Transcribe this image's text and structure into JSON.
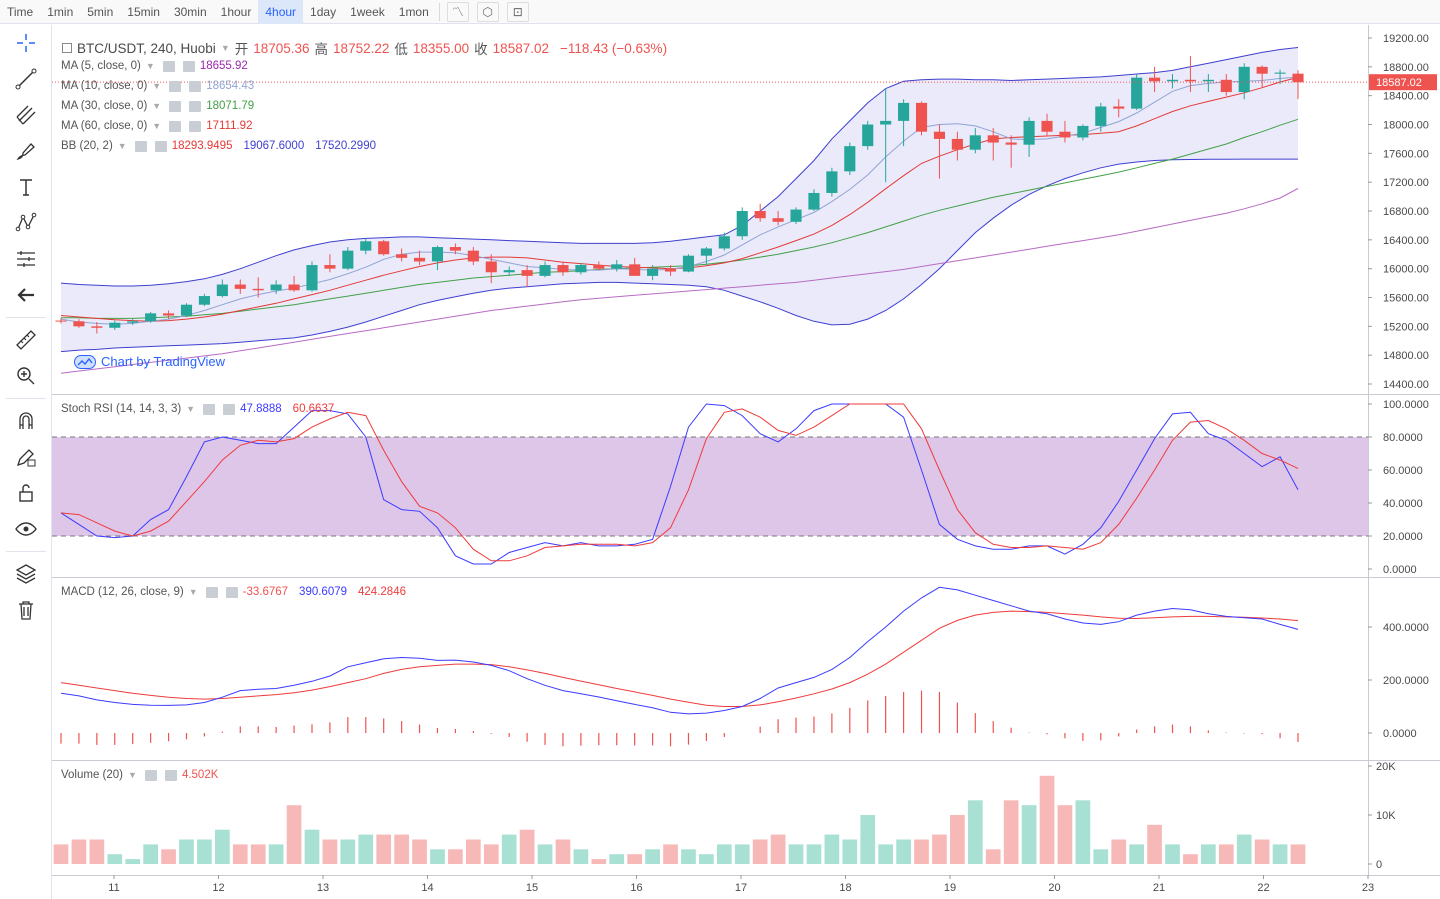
{
  "toolbar": {
    "timeframes": [
      "Time",
      "1min",
      "5min",
      "15min",
      "30min",
      "1hour",
      "4hour",
      "1day",
      "1week",
      "1mon"
    ],
    "active_timeframe": "4hour"
  },
  "legend": {
    "symbol": "BTC/USDT, 240, Huobi",
    "open_label": "开",
    "open": "18705.36",
    "high_label": "高",
    "high": "18752.22",
    "low_label": "低",
    "low": "18355.00",
    "close_label": "收",
    "close": "18587.02",
    "change": "−118.43 (−0.63%)",
    "ma5_label": "MA (5, close, 0)",
    "ma5_value": "18655.92",
    "ma10_label": "MA (10, close, 0)",
    "ma10_value": "18654.43",
    "ma30_label": "MA (30, close, 0)",
    "ma30_value": "18071.79",
    "ma60_label": "MA (60, close, 0)",
    "ma60_value": "17111.92",
    "bb_label": "BB (20, 2)",
    "bb_basis": "18293.9495",
    "bb_upper": "19067.6000",
    "bb_lower": "17520.2990",
    "watermark": "Chart by TradingView",
    "stoch_label": "Stoch RSI (14, 14, 3, 3)",
    "stoch_k": "47.8888",
    "stoch_d": "60.6637",
    "macd_label": "MACD (12, 26, close, 9)",
    "macd_hist": "-33.6767",
    "macd_line": "390.6079",
    "macd_signal": "424.2846",
    "volume_label": "Volume (20)",
    "volume_value": "4.502K",
    "last_price_tag": "18587.02"
  },
  "colors": {
    "up": "#26a69a",
    "down": "#ef5350",
    "ma5": "#9c27b0",
    "ma10": "#90a4d4",
    "ma30": "#e53935",
    "ma60": "#43a047",
    "bb_band": "#3f3fd0",
    "bb_basis": "#b86bc4",
    "stoch_k": "#3b3bff",
    "stoch_d": "#ef3b3b",
    "macd_line": "#3b3bff",
    "macd_signal": "#ef3b3b",
    "stoch_band": "#dcc3e8"
  },
  "chart_data": {
    "type": "candlestick",
    "x_ticks": [
      "11",
      "12",
      "13",
      "14",
      "15",
      "16",
      "17",
      "18",
      "19",
      "20",
      "21",
      "22",
      "23"
    ],
    "price_ticks": [
      "19200.00",
      "18800.00",
      "18400.00",
      "18000.00",
      "17600.00",
      "17200.00",
      "16800.00",
      "16400.00",
      "16000.00",
      "15600.00",
      "15200.00",
      "14800.00",
      "14400.00"
    ],
    "price_ylim": [
      14400,
      19200
    ],
    "ohlc": [
      [
        15280,
        15320,
        15240,
        15270
      ],
      [
        15270,
        15300,
        15180,
        15200
      ],
      [
        15200,
        15260,
        15100,
        15180
      ],
      [
        15180,
        15280,
        15150,
        15250
      ],
      [
        15250,
        15300,
        15220,
        15270
      ],
      [
        15270,
        15400,
        15250,
        15380
      ],
      [
        15380,
        15420,
        15300,
        15350
      ],
      [
        15350,
        15520,
        15330,
        15500
      ],
      [
        15500,
        15650,
        15480,
        15620
      ],
      [
        15620,
        15850,
        15600,
        15780
      ],
      [
        15780,
        15850,
        15650,
        15720
      ],
      [
        15720,
        15880,
        15600,
        15700
      ],
      [
        15700,
        15840,
        15650,
        15780
      ],
      [
        15780,
        15900,
        15680,
        15700
      ],
      [
        15700,
        16100,
        15680,
        16050
      ],
      [
        16050,
        16200,
        15950,
        16000
      ],
      [
        16000,
        16300,
        15980,
        16250
      ],
      [
        16250,
        16420,
        16200,
        16380
      ],
      [
        16380,
        16400,
        16180,
        16200
      ],
      [
        16200,
        16280,
        16100,
        16150
      ],
      [
        16150,
        16250,
        16050,
        16100
      ],
      [
        16100,
        16320,
        15980,
        16300
      ],
      [
        16300,
        16350,
        16200,
        16250
      ],
      [
        16250,
        16300,
        16050,
        16100
      ],
      [
        16100,
        16200,
        15800,
        15950
      ],
      [
        15950,
        16030,
        15900,
        15980
      ],
      [
        15980,
        16050,
        15750,
        15900
      ],
      [
        15900,
        16100,
        15880,
        16050
      ],
      [
        16050,
        16100,
        15900,
        15950
      ],
      [
        15950,
        16080,
        15920,
        16050
      ],
      [
        16050,
        16100,
        15980,
        16000
      ],
      [
        16000,
        16120,
        15960,
        16060
      ],
      [
        16060,
        16150,
        15920,
        15900
      ],
      [
        15900,
        16050,
        15840,
        16000
      ],
      [
        16000,
        16050,
        15900,
        15960
      ],
      [
        15960,
        16200,
        15950,
        16180
      ],
      [
        16180,
        16300,
        16050,
        16280
      ],
      [
        16280,
        16500,
        16250,
        16450
      ],
      [
        16450,
        16850,
        16400,
        16800
      ],
      [
        16800,
        16900,
        16650,
        16700
      ],
      [
        16700,
        16800,
        16600,
        16650
      ],
      [
        16650,
        16850,
        16620,
        16820
      ],
      [
        16820,
        17100,
        16800,
        17050
      ],
      [
        17050,
        17400,
        17000,
        17350
      ],
      [
        17350,
        17750,
        17300,
        17700
      ],
      [
        17700,
        18050,
        17650,
        18000
      ],
      [
        18000,
        18500,
        17200,
        18050
      ],
      [
        18050,
        18350,
        17700,
        18300
      ],
      [
        18300,
        18320,
        17850,
        17900
      ],
      [
        17900,
        18000,
        17250,
        17800
      ],
      [
        17800,
        17900,
        17500,
        17650
      ],
      [
        17650,
        17950,
        17600,
        17850
      ],
      [
        17850,
        17950,
        17500,
        17750
      ],
      [
        17750,
        17850,
        17400,
        17720
      ],
      [
        17720,
        18100,
        17550,
        18050
      ],
      [
        18050,
        18150,
        17850,
        17900
      ],
      [
        17900,
        18050,
        17750,
        17820
      ],
      [
        17820,
        18000,
        17780,
        17980
      ],
      [
        17980,
        18300,
        17900,
        18250
      ],
      [
        18250,
        18350,
        18100,
        18220
      ],
      [
        18220,
        18700,
        18200,
        18650
      ],
      [
        18650,
        18800,
        18450,
        18600
      ],
      [
        18600,
        18700,
        18500,
        18620
      ],
      [
        18620,
        18950,
        18450,
        18600
      ],
      [
        18600,
        18700,
        18450,
        18620
      ],
      [
        18620,
        18700,
        18400,
        18450
      ],
      [
        18450,
        18850,
        18350,
        18800
      ],
      [
        18800,
        18820,
        18520,
        18705
      ],
      [
        18705,
        18760,
        18560,
        18720
      ],
      [
        18705,
        18752,
        18355,
        18587
      ]
    ],
    "ma5": [
      15300,
      15260,
      15240,
      15230,
      15240,
      15270,
      15300,
      15350,
      15420,
      15500,
      15580,
      15640,
      15690,
      15730,
      15790,
      15850,
      15930,
      16020,
      16130,
      16200,
      16230,
      16230,
      16220,
      16180,
      16130,
      16080,
      16030,
      16010,
      15990,
      15980,
      15980,
      16000,
      15990,
      15980,
      15990,
      16030,
      16100,
      16190,
      16330,
      16470,
      16580,
      16680,
      16780,
      16930,
      17100,
      17300,
      17550,
      17770,
      17960,
      18000,
      18010,
      17980,
      17900,
      17800,
      17790,
      17800,
      17840,
      17880,
      17960,
      18040,
      18160,
      18310,
      18460,
      18540,
      18570,
      18590,
      18600,
      18610,
      18640,
      18656
    ],
    "ma10": [
      15350,
      15330,
      15310,
      15290,
      15280,
      15270,
      15280,
      15300,
      15330,
      15370,
      15420,
      15470,
      15520,
      15580,
      15640,
      15700,
      15770,
      15840,
      15910,
      15970,
      16030,
      16080,
      16120,
      16150,
      16160,
      16160,
      16150,
      16120,
      16090,
      16070,
      16050,
      16030,
      16020,
      16010,
      16000,
      16010,
      16040,
      16080,
      16140,
      16220,
      16300,
      16390,
      16480,
      16600,
      16750,
      16920,
      17110,
      17290,
      17460,
      17560,
      17650,
      17730,
      17800,
      17820,
      17830,
      17840,
      17850,
      17860,
      17880,
      17900,
      17980,
      18080,
      18180,
      18260,
      18320,
      18380,
      18440,
      18510,
      18590,
      18654
    ],
    "ma30": [
      15320,
      15320,
      15310,
      15310,
      15310,
      15320,
      15330,
      15340,
      15360,
      15380,
      15410,
      15440,
      15470,
      15500,
      15540,
      15580,
      15620,
      15660,
      15700,
      15740,
      15780,
      15810,
      15840,
      15870,
      15890,
      15910,
      15930,
      15950,
      15960,
      15970,
      15990,
      16000,
      16010,
      16020,
      16030,
      16040,
      16060,
      16090,
      16120,
      16160,
      16200,
      16250,
      16300,
      16360,
      16430,
      16500,
      16580,
      16660,
      16740,
      16810,
      16870,
      16930,
      16990,
      17040,
      17090,
      17140,
      17190,
      17240,
      17290,
      17340,
      17400,
      17460,
      17520,
      17590,
      17660,
      17730,
      17820,
      17900,
      17990,
      18072
    ],
    "ma60": [
      14550,
      14580,
      14610,
      14640,
      14670,
      14700,
      14730,
      14760,
      14790,
      14820,
      14860,
      14900,
      14940,
      14980,
      15020,
      15060,
      15100,
      15140,
      15180,
      15220,
      15260,
      15300,
      15340,
      15380,
      15420,
      15450,
      15480,
      15510,
      15540,
      15570,
      15590,
      15610,
      15630,
      15650,
      15670,
      15690,
      15710,
      15730,
      15750,
      15770,
      15790,
      15810,
      15840,
      15870,
      15900,
      15930,
      15960,
      15990,
      16030,
      16070,
      16110,
      16150,
      16190,
      16230,
      16270,
      16310,
      16350,
      16390,
      16430,
      16470,
      16520,
      16570,
      16620,
      16670,
      16720,
      16770,
      16830,
      16900,
      16980,
      17112
    ],
    "bb_upper": [
      15800,
      15780,
      15770,
      15760,
      15760,
      15770,
      15790,
      15820,
      15860,
      15920,
      16000,
      16090,
      16180,
      16260,
      16320,
      16370,
      16400,
      16420,
      16430,
      16440,
      16440,
      16430,
      16420,
      16410,
      16400,
      16390,
      16380,
      16370,
      16360,
      16350,
      16350,
      16350,
      16350,
      16360,
      16380,
      16410,
      16440,
      16470,
      16600,
      16800,
      17000,
      17250,
      17500,
      17800,
      18050,
      18300,
      18500,
      18600,
      18620,
      18630,
      18630,
      18620,
      18620,
      18610,
      18620,
      18630,
      18640,
      18650,
      18660,
      18680,
      18700,
      18720,
      18750,
      18800,
      18850,
      18900,
      18950,
      19000,
      19040,
      19068
    ],
    "bb_lower": [
      14850,
      14870,
      14880,
      14900,
      14910,
      14920,
      14930,
      14940,
      14950,
      14960,
      14980,
      15000,
      15020,
      15040,
      15080,
      15130,
      15190,
      15260,
      15340,
      15420,
      15500,
      15560,
      15610,
      15660,
      15700,
      15730,
      15750,
      15770,
      15790,
      15800,
      15810,
      15810,
      15800,
      15790,
      15780,
      15770,
      15750,
      15700,
      15620,
      15540,
      15450,
      15350,
      15270,
      15220,
      15230,
      15300,
      15420,
      15580,
      15780,
      16000,
      16250,
      16500,
      16700,
      16880,
      17030,
      17150,
      17250,
      17330,
      17400,
      17450,
      17480,
      17500,
      17510,
      17515,
      17518,
      17519,
      17520,
      17520,
      17520,
      17520
    ],
    "stoch_k": [
      34,
      27,
      20,
      19,
      20,
      30,
      36,
      56,
      77,
      80,
      78,
      76,
      76,
      86,
      96,
      96,
      94,
      80,
      42,
      36,
      35,
      25,
      8,
      3,
      3,
      10,
      13,
      16,
      14,
      16,
      14,
      14,
      15,
      18,
      50,
      86,
      100,
      99,
      93,
      82,
      77,
      85,
      96,
      100,
      100,
      100,
      100,
      92,
      60,
      27,
      18,
      14,
      12,
      12,
      14,
      14,
      9,
      15,
      25,
      41,
      60,
      79,
      94,
      95,
      82,
      78,
      70,
      62,
      68,
      48
    ],
    "stoch_d": [
      34,
      33,
      28,
      23,
      20,
      23,
      29,
      41,
      53,
      66,
      75,
      78,
      77,
      79,
      86,
      91,
      95,
      93,
      72,
      53,
      38,
      34,
      25,
      12,
      5,
      5,
      8,
      13,
      14,
      15,
      15,
      15,
      14,
      16,
      25,
      48,
      79,
      95,
      97,
      92,
      84,
      81,
      86,
      93,
      100,
      100,
      100,
      100,
      85,
      60,
      36,
      22,
      15,
      13,
      13,
      14,
      13,
      12,
      16,
      27,
      43,
      60,
      78,
      89,
      90,
      85,
      78,
      70,
      66,
      61
    ],
    "stoch_ylim": [
      0,
      100
    ],
    "stoch_ticks": [
      "100.0000",
      "80.0000",
      "60.0000",
      "40.0000",
      "20.0000",
      "0.0000"
    ],
    "macd_line": [
      150,
      140,
      125,
      115,
      108,
      105,
      104,
      106,
      115,
      135,
      160,
      165,
      168,
      180,
      195,
      215,
      250,
      265,
      280,
      285,
      282,
      274,
      275,
      268,
      255,
      235,
      205,
      180,
      160,
      148,
      136,
      122,
      108,
      95,
      78,
      72,
      75,
      85,
      100,
      130,
      170,
      190,
      210,
      240,
      285,
      345,
      400,
      460,
      510,
      550,
      540,
      520,
      500,
      480,
      460,
      450,
      430,
      415,
      410,
      420,
      445,
      460,
      470,
      465,
      450,
      440,
      435,
      430,
      410,
      391
    ],
    "macd_signal": [
      190,
      180,
      170,
      160,
      150,
      142,
      135,
      130,
      128,
      130,
      135,
      140,
      145,
      152,
      162,
      175,
      190,
      205,
      225,
      240,
      250,
      255,
      260,
      260,
      258,
      250,
      238,
      225,
      210,
      196,
      182,
      168,
      155,
      142,
      128,
      116,
      105,
      100,
      100,
      106,
      118,
      132,
      148,
      166,
      190,
      222,
      260,
      305,
      350,
      395,
      425,
      445,
      455,
      460,
      458,
      455,
      450,
      445,
      438,
      433,
      432,
      435,
      438,
      440,
      440,
      438,
      437,
      434,
      430,
      424
    ],
    "macd_hist": [
      -40,
      -40,
      -45,
      -45,
      -42,
      -37,
      -31,
      -24,
      -13,
      5,
      25,
      25,
      23,
      28,
      33,
      40,
      60,
      60,
      55,
      45,
      32,
      19,
      15,
      8,
      -3,
      -15,
      -33,
      -45,
      -50,
      -48,
      -46,
      -46,
      -47,
      -47,
      -50,
      -44,
      -30,
      -15,
      0,
      24,
      52,
      58,
      62,
      74,
      95,
      123,
      140,
      155,
      160,
      155,
      115,
      75,
      45,
      20,
      2,
      -5,
      -20,
      -30,
      -28,
      -13,
      13,
      25,
      32,
      25,
      10,
      2,
      -2,
      -4,
      -20,
      -34
    ],
    "macd_ylim": [
      -60,
      600
    ],
    "macd_ticks": [
      "400.0000",
      "200.0000",
      "0.0000"
    ],
    "volume": [
      4,
      5,
      5,
      2,
      1,
      4,
      3,
      5,
      5,
      7,
      4,
      4,
      4,
      12,
      7,
      5,
      5,
      6,
      6,
      6,
      5,
      3,
      3,
      5,
      4,
      6,
      7,
      4,
      5,
      3,
      1,
      2,
      2,
      3,
      4,
      3,
      2,
      4,
      4,
      5,
      6,
      4,
      4,
      6,
      5,
      10,
      4,
      5,
      5,
      6,
      10,
      13,
      3,
      13,
      12,
      18,
      12,
      13,
      3,
      5,
      4,
      8,
      4,
      2,
      4,
      4,
      6,
      5,
      4,
      4
    ],
    "volume_ylim": [
      0,
      20000
    ],
    "volume_ticks": [
      "20K",
      "10K",
      "0"
    ]
  }
}
